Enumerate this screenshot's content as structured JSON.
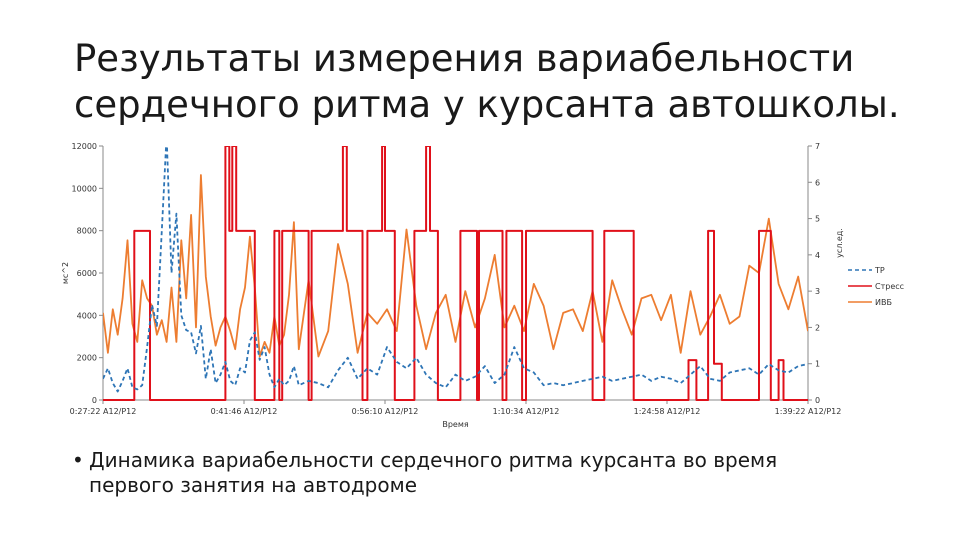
{
  "slide": {
    "title_line1": "Результаты измерения вариабельности",
    "title_line2": "сердечного ритма у курсанта автошколы.",
    "bullet_char": "•",
    "bullet_text": "Динамика вариабельности сердечного ритма курсанта во время первого занятия на автодроме"
  },
  "chart_data": {
    "type": "line",
    "xlabel": "Время",
    "ylabel_left": "мс^2",
    "ylabel_right": "усл.ед.",
    "x_ticks": [
      "0:27:22 A12/P12",
      "0:41:46 A12/P12",
      "0:56:10 A12/P12",
      "1:10:34 A12/P12",
      "1:24:58 A12/P12",
      "1:39:22 A12/P12"
    ],
    "x_range": [
      0,
      72
    ],
    "y_left_ticks": [
      "0",
      "2000",
      "4000",
      "6000",
      "8000",
      "10000",
      "12000"
    ],
    "ylim_left": [
      0,
      12000
    ],
    "y_right_ticks": [
      "0",
      "1",
      "2",
      "3",
      "4",
      "5",
      "6",
      "7"
    ],
    "ylim_right": [
      0,
      7
    ],
    "grid": false,
    "legend_position": "right",
    "colors": {
      "tp": "#2e75b6",
      "stress": "#e0101a",
      "ivb": "#ed7d31"
    },
    "series": [
      {
        "name": "ТР",
        "axis": "left",
        "style": "dashed",
        "x": [
          0,
          0.5,
          1,
          1.5,
          2,
          2.5,
          3,
          3.5,
          4,
          4.5,
          5,
          5.5,
          6,
          6.5,
          7,
          7.5,
          8,
          8.5,
          9,
          9.5,
          10,
          10.5,
          11,
          11.5,
          12,
          12.5,
          13,
          13.5,
          14,
          14.5,
          15,
          15.5,
          16,
          16.5,
          17,
          17.5,
          18,
          18.5,
          19,
          19.5,
          20,
          21,
          22,
          23,
          24,
          25,
          26,
          27,
          28,
          29,
          30,
          31,
          32,
          33,
          34,
          35,
          36,
          37,
          38,
          39,
          40,
          41,
          42,
          43,
          44,
          45,
          46,
          47,
          48,
          49,
          50,
          51,
          52,
          53,
          54,
          55,
          56,
          57,
          58,
          59,
          60,
          61,
          62,
          63,
          64,
          65,
          66,
          67,
          68,
          69,
          70,
          71,
          72
        ],
        "values": [
          1000,
          1500,
          800,
          400,
          900,
          1500,
          600,
          500,
          700,
          2500,
          4500,
          3500,
          8000,
          12500,
          6000,
          8800,
          4000,
          3300,
          3200,
          2200,
          3500,
          1000,
          2400,
          800,
          1200,
          1800,
          900,
          700,
          1500,
          1300,
          2800,
          3200,
          1900,
          2500,
          1200,
          600,
          1000,
          700,
          900,
          1600,
          700,
          900,
          800,
          600,
          1400,
          2000,
          1000,
          1500,
          1200,
          2500,
          1800,
          1500,
          2000,
          1200,
          800,
          600,
          1200,
          900,
          1100,
          1600,
          800,
          1200,
          2500,
          1500,
          1300,
          700,
          800,
          700,
          800,
          900,
          1000,
          1100,
          900,
          1000,
          1100,
          1200,
          900,
          1100,
          1000,
          800,
          1200,
          1600,
          1000,
          900,
          1300,
          1400,
          1500,
          1200,
          1700,
          1400,
          1300,
          1600,
          1700
        ]
      },
      {
        "name": "Стресс",
        "axis": "right",
        "style": "solid",
        "x": [
          0,
          3.2,
          3.2,
          4.8,
          4.8,
          12.5,
          12.5,
          12.9,
          12.9,
          13.2,
          13.2,
          13.6,
          13.6,
          15.5,
          15.5,
          17.5,
          17.5,
          18,
          18,
          18.3,
          18.3,
          21,
          21,
          21.3,
          21.3,
          24.5,
          24.5,
          24.9,
          24.9,
          26.5,
          26.5,
          27,
          27,
          28.5,
          28.5,
          28.8,
          28.8,
          29.8,
          29.8,
          31.8,
          31.8,
          33,
          33,
          33.4,
          33.4,
          34.2,
          34.2,
          36.5,
          36.5,
          38.2,
          38.2,
          38.4,
          38.4,
          40.8,
          40.8,
          41.2,
          41.2,
          42.8,
          42.8,
          43.2,
          43.2,
          50,
          50,
          51.2,
          51.2,
          54.2,
          54.2,
          59.8,
          59.8,
          60.6,
          60.6,
          61.8,
          61.8,
          62.4,
          62.4,
          63.2,
          63.2,
          67,
          67,
          68.2,
          68.2,
          69,
          69,
          69.5,
          69.5,
          72
        ],
        "values": [
          0,
          0,
          4.66,
          4.66,
          0,
          0,
          7,
          7,
          4.66,
          4.66,
          7,
          7,
          4.66,
          4.66,
          0,
          0,
          4.66,
          4.66,
          0,
          0,
          4.66,
          4.66,
          0,
          0,
          4.66,
          4.66,
          7,
          7,
          4.66,
          4.66,
          0,
          0,
          4.66,
          4.66,
          7,
          7,
          4.66,
          4.66,
          0,
          0,
          4.66,
          4.66,
          7,
          7,
          4.66,
          4.66,
          0,
          0,
          4.66,
          4.66,
          0,
          0,
          4.66,
          4.66,
          0,
          0,
          4.66,
          4.66,
          0,
          0,
          4.66,
          4.66,
          0,
          0,
          4.66,
          4.66,
          0,
          0,
          1.1,
          1.1,
          0,
          0,
          4.66,
          4.66,
          1,
          1,
          0,
          0,
          4.66,
          4.66,
          0,
          0,
          1.1,
          1.1,
          0,
          0
        ]
      },
      {
        "name": "ИВБ",
        "axis": "right",
        "style": "solid",
        "x": [
          0,
          0.5,
          1,
          1.5,
          2,
          2.5,
          3,
          3.5,
          4,
          4.5,
          5,
          5.5,
          6,
          6.5,
          7,
          7.5,
          8,
          8.5,
          9,
          9.5,
          10,
          10.5,
          11,
          11.5,
          12,
          12.5,
          13,
          13.5,
          14,
          14.5,
          15,
          15.5,
          16,
          16.5,
          17,
          17.5,
          18,
          18.5,
          19,
          19.5,
          20,
          21,
          22,
          23,
          24,
          25,
          26,
          27,
          28,
          29,
          30,
          31,
          32,
          33,
          34,
          35,
          36,
          37,
          38,
          39,
          40,
          41,
          42,
          43,
          44,
          45,
          46,
          47,
          48,
          49,
          50,
          51,
          52,
          53,
          54,
          55,
          56,
          57,
          58,
          59,
          60,
          61,
          62,
          63,
          64,
          65,
          66,
          67,
          68,
          69,
          70,
          71,
          72
        ],
        "values": [
          2.4,
          1.3,
          2.5,
          1.8,
          2.8,
          4.4,
          2.1,
          1.6,
          3.3,
          2.8,
          2.6,
          1.8,
          2.2,
          1.6,
          3.1,
          1.6,
          4.4,
          2.8,
          5.1,
          2.0,
          6.2,
          3.4,
          2.3,
          1.5,
          2.0,
          2.3,
          1.9,
          1.4,
          2.5,
          3.1,
          4.5,
          3.1,
          1.2,
          1.6,
          1.3,
          2.3,
          1.5,
          1.8,
          2.9,
          4.9,
          1.4,
          3.3,
          1.2,
          1.9,
          4.3,
          3.2,
          1.3,
          2.4,
          2.1,
          2.5,
          1.9,
          4.7,
          2.6,
          1.4,
          2.4,
          2.9,
          1.6,
          3.0,
          2.0,
          2.8,
          4.0,
          2.0,
          2.6,
          1.9,
          3.2,
          2.6,
          1.4,
          2.4,
          2.5,
          1.9,
          3.0,
          1.6,
          3.3,
          2.5,
          1.8,
          2.8,
          2.9,
          2.2,
          2.9,
          1.3,
          3.0,
          1.8,
          2.3,
          2.9,
          2.1,
          2.3,
          3.7,
          3.5,
          5.0,
          3.2,
          2.5,
          3.4,
          1.9
        ]
      }
    ]
  }
}
